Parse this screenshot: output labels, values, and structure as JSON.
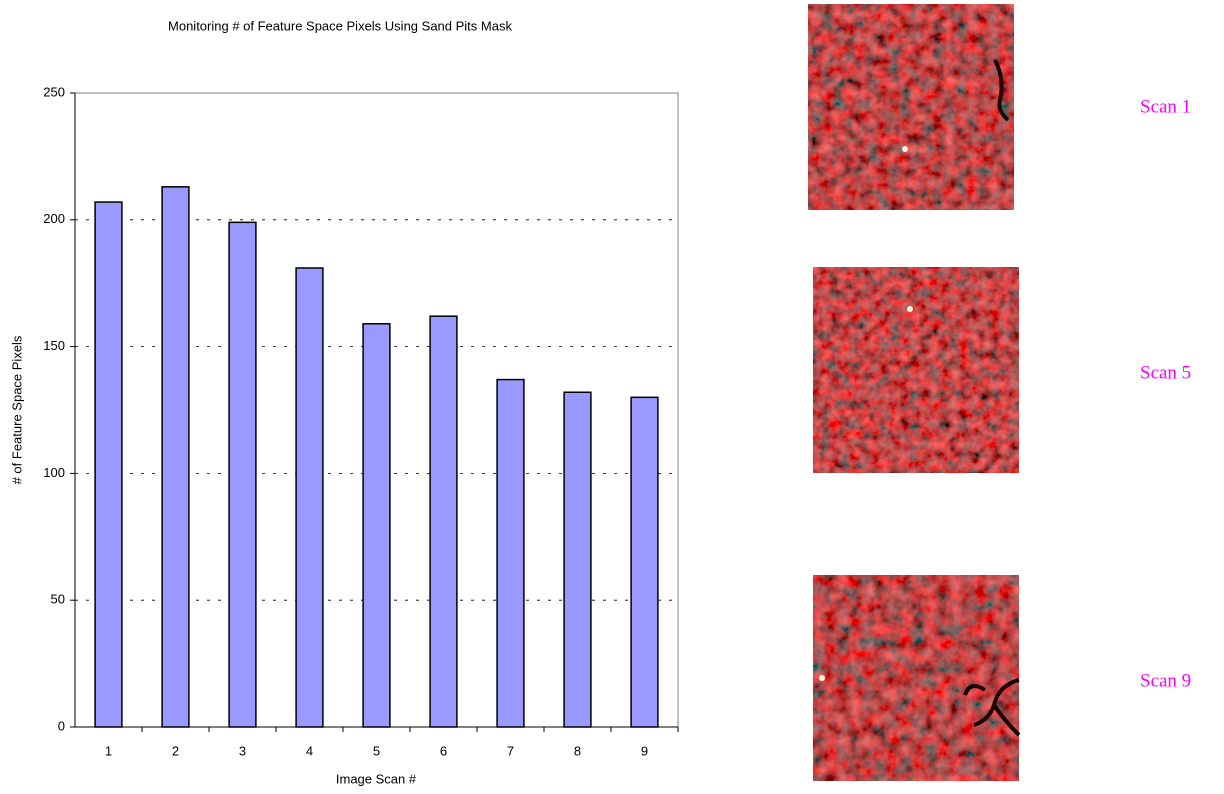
{
  "chart_data": {
    "type": "bar",
    "title": "Monitoring # of Feature Space Pixels Using Sand Pits Mask",
    "x_label": "Image Scan #",
    "y_label": "# of Feature Space Pixels",
    "categories": [
      "1",
      "2",
      "3",
      "4",
      "5",
      "6",
      "7",
      "8",
      "9"
    ],
    "values": [
      207,
      213,
      199,
      181,
      159,
      162,
      137,
      132,
      130
    ],
    "color": "#9999ff",
    "ylim": [
      0,
      250
    ],
    "yticks": [
      0,
      50,
      100,
      150,
      200,
      250
    ],
    "grid": true
  },
  "images": [
    {
      "label": "Scan 1"
    },
    {
      "label": "Scan 5"
    },
    {
      "label": "Scan 9"
    }
  ]
}
